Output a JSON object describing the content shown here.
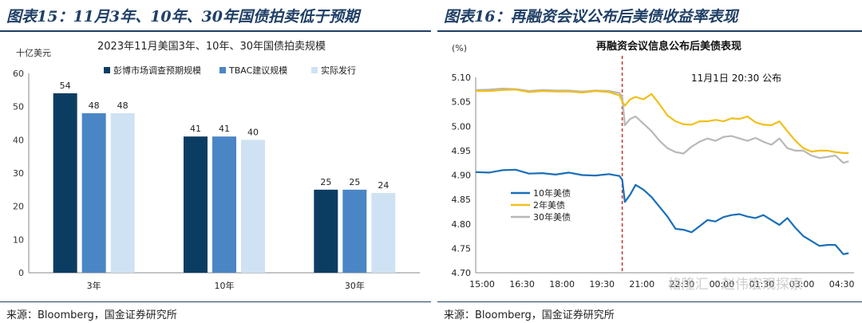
{
  "left": {
    "figure_title": "图表15：11月3年、10年、30年国债拍卖低于预期",
    "source": "来源：Bloomberg，国金证券研究所"
  },
  "right": {
    "figure_title": "图表16：再融资会议公布后美债收益率表现",
    "source": "来源：Bloomberg，国金证券研究所"
  },
  "watermark": "格隆汇 · 赵伟宏观探索",
  "chart_data": [
    {
      "type": "bar",
      "title": "2023年11月美国3年、10年、30年国债拍卖规模",
      "unit_label": "十亿美元",
      "categories": [
        "3年",
        "10年",
        "30年"
      ],
      "ylim": [
        0,
        60
      ],
      "yticks": [
        0,
        10,
        20,
        30,
        40,
        50,
        60
      ],
      "legend_position": "top",
      "series": [
        {
          "name": "彭博市场调查预期规模",
          "color": "#0b3d63",
          "values": [
            54,
            41,
            25
          ]
        },
        {
          "name": "TBAC建议规模",
          "color": "#4a86c5",
          "values": [
            48,
            41,
            25
          ]
        },
        {
          "name": "实际发行",
          "color": "#cfe2f3",
          "values": [
            48,
            40,
            24
          ]
        }
      ]
    },
    {
      "type": "line",
      "title": "再融资会议信息公布后美债表现",
      "unit_label": "(%)",
      "ylim": [
        4.7,
        5.1
      ],
      "yticks": [
        4.7,
        4.75,
        4.8,
        4.85,
        4.9,
        4.95,
        5.0,
        5.05,
        5.1
      ],
      "x_ticks": [
        "15:00",
        "16:30",
        "18:00",
        "19:30",
        "21:00",
        "22:30",
        "00:00",
        "01:30",
        "03:00",
        "04:30"
      ],
      "x_range_hours": [
        0,
        14.2
      ],
      "annotation": {
        "text": "11月1日 20:30 公布",
        "x_hour": 5.5
      },
      "legend_position": "left-middle",
      "series": [
        {
          "name": "10年美债",
          "color": "#1a6fb8",
          "x": [
            0,
            0.5,
            1,
            1.5,
            2,
            2.5,
            3,
            3.5,
            4,
            4.5,
            5,
            5.4,
            5.5,
            5.6,
            5.8,
            6,
            6.3,
            6.6,
            6.9,
            7.2,
            7.5,
            7.8,
            8.1,
            8.4,
            8.7,
            9,
            9.3,
            9.6,
            9.9,
            10.2,
            10.5,
            10.8,
            11.1,
            11.4,
            11.7,
            12,
            12.3,
            12.6,
            12.9,
            13.2,
            13.5,
            13.8,
            14
          ],
          "y": [
            4.906,
            4.905,
            4.91,
            4.911,
            4.903,
            4.904,
            4.901,
            4.905,
            4.9,
            4.899,
            4.902,
            4.898,
            4.89,
            4.845,
            4.86,
            4.88,
            4.87,
            4.855,
            4.835,
            4.815,
            4.79,
            4.788,
            4.783,
            4.795,
            4.808,
            4.805,
            4.814,
            4.818,
            4.82,
            4.815,
            4.812,
            4.818,
            4.808,
            4.798,
            4.812,
            4.792,
            4.775,
            4.765,
            4.755,
            4.757,
            4.757,
            4.738,
            4.74
          ]
        },
        {
          "name": "2年美债",
          "color": "#f2bf1a",
          "x": [
            0,
            0.5,
            1,
            1.5,
            2,
            2.5,
            3,
            3.5,
            4,
            4.5,
            5,
            5.4,
            5.5,
            5.6,
            5.8,
            6,
            6.3,
            6.6,
            6.9,
            7.2,
            7.5,
            7.8,
            8.1,
            8.4,
            8.7,
            9,
            9.3,
            9.6,
            9.9,
            10.2,
            10.5,
            10.8,
            11.1,
            11.4,
            11.7,
            12,
            12.3,
            12.6,
            12.9,
            13.2,
            13.5,
            13.8,
            14
          ],
          "y": [
            5.072,
            5.072,
            5.074,
            5.075,
            5.07,
            5.072,
            5.071,
            5.071,
            5.069,
            5.072,
            5.07,
            5.063,
            5.05,
            5.042,
            5.055,
            5.06,
            5.055,
            5.066,
            5.045,
            5.022,
            5.01,
            5.004,
            5.003,
            5.01,
            5.01,
            5.013,
            5.01,
            5.016,
            5.015,
            5.02,
            5.008,
            5.003,
            5.002,
            5.01,
            4.99,
            4.97,
            4.955,
            4.948,
            4.95,
            4.95,
            4.947,
            4.945,
            4.945
          ]
        },
        {
          "name": "30年美债",
          "color": "#b8b8b8",
          "x": [
            0,
            0.5,
            1,
            1.5,
            2,
            2.5,
            3,
            3.5,
            4,
            4.5,
            5,
            5.4,
            5.5,
            5.6,
            5.8,
            6,
            6.3,
            6.6,
            6.9,
            7.2,
            7.5,
            7.8,
            8.1,
            8.4,
            8.7,
            9,
            9.3,
            9.6,
            9.9,
            10.2,
            10.5,
            10.8,
            11.1,
            11.4,
            11.7,
            12,
            12.3,
            12.6,
            12.9,
            13.2,
            13.5,
            13.8,
            14
          ],
          "y": [
            5.074,
            5.075,
            5.077,
            5.076,
            5.072,
            5.074,
            5.073,
            5.073,
            5.071,
            5.073,
            5.072,
            5.068,
            5.06,
            5.002,
            5.015,
            5.02,
            5.005,
            4.99,
            4.97,
            4.955,
            4.947,
            4.944,
            4.958,
            4.968,
            4.975,
            4.97,
            4.978,
            4.98,
            4.975,
            4.97,
            4.976,
            4.968,
            4.962,
            4.975,
            4.955,
            4.95,
            4.95,
            4.94,
            4.935,
            4.937,
            4.94,
            4.925,
            4.928
          ]
        }
      ]
    }
  ]
}
